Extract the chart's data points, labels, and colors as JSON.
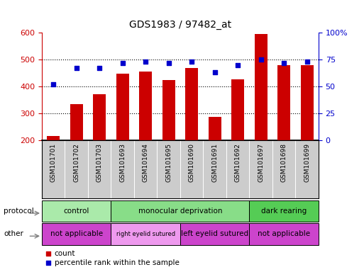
{
  "title": "GDS1983 / 97482_at",
  "samples": [
    "GSM101701",
    "GSM101702",
    "GSM101703",
    "GSM101693",
    "GSM101694",
    "GSM101695",
    "GSM101690",
    "GSM101691",
    "GSM101692",
    "GSM101697",
    "GSM101698",
    "GSM101699"
  ],
  "counts": [
    215,
    335,
    372,
    447,
    455,
    424,
    468,
    287,
    425,
    596,
    478,
    480
  ],
  "percentiles": [
    52,
    67,
    67,
    72,
    73,
    72,
    73,
    63,
    70,
    75,
    72,
    73
  ],
  "bar_color": "#cc0000",
  "dot_color": "#0000cc",
  "ylim_left": [
    200,
    600
  ],
  "ylim_right": [
    0,
    100
  ],
  "yticks_left": [
    200,
    300,
    400,
    500,
    600
  ],
  "yticks_right": [
    0,
    25,
    50,
    75,
    100
  ],
  "ytick_labels_right": [
    "0",
    "25",
    "50",
    "75",
    "100%"
  ],
  "protocol_groups": [
    {
      "label": "control",
      "start": 0,
      "end": 3,
      "color": "#aaeaaa"
    },
    {
      "label": "monocular deprivation",
      "start": 3,
      "end": 9,
      "color": "#88dd88"
    },
    {
      "label": "dark rearing",
      "start": 9,
      "end": 12,
      "color": "#55cc55"
    }
  ],
  "other_groups": [
    {
      "label": "not applicable",
      "start": 0,
      "end": 3,
      "color": "#cc44cc"
    },
    {
      "label": "right eyelid sutured",
      "start": 3,
      "end": 6,
      "color": "#ee99ee"
    },
    {
      "label": "left eyelid sutured",
      "start": 6,
      "end": 9,
      "color": "#cc44cc"
    },
    {
      "label": "not applicable",
      "start": 9,
      "end": 12,
      "color": "#cc44cc"
    }
  ],
  "protocol_label": "protocol",
  "other_label": "other",
  "legend_count_label": "count",
  "legend_pct_label": "percentile rank within the sample",
  "bar_color_legend": "#cc0000",
  "dot_color_legend": "#0000cc",
  "grid_color": "#000000",
  "tick_area_color": "#cccccc",
  "right_ytick_labels": [
    "0",
    "25",
    "50",
    "75",
    "100%"
  ]
}
